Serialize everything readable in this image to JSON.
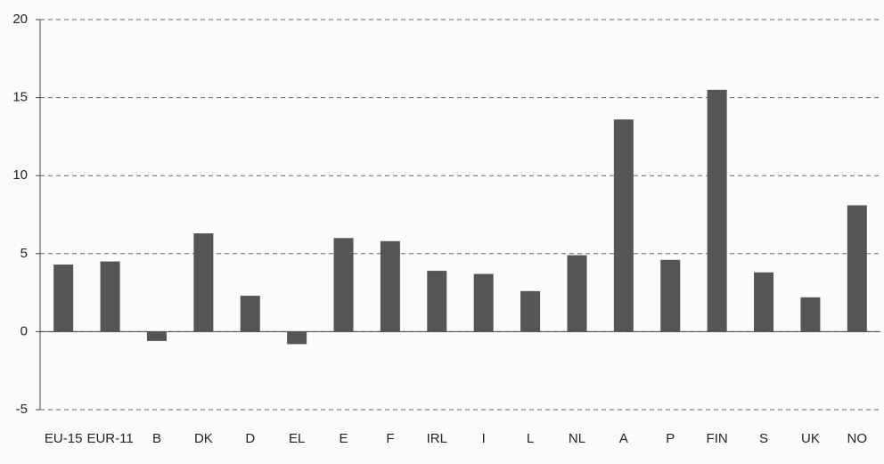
{
  "chart_data": {
    "type": "bar",
    "categories": [
      "EU-15",
      "EUR-11",
      "B",
      "DK",
      "D",
      "EL",
      "E",
      "F",
      "IRL",
      "I",
      "L",
      "NL",
      "A",
      "P",
      "FIN",
      "S",
      "UK",
      "NO"
    ],
    "values": [
      4.3,
      4.5,
      -0.6,
      6.3,
      2.3,
      -0.8,
      6.0,
      5.8,
      3.9,
      3.7,
      2.6,
      4.9,
      13.6,
      4.6,
      15.5,
      3.8,
      2.2,
      8.1
    ],
    "color": "#555555",
    "ylim": [
      -5,
      20
    ],
    "yticks": [
      -5,
      0,
      5,
      10,
      15,
      20
    ],
    "grid": true
  }
}
